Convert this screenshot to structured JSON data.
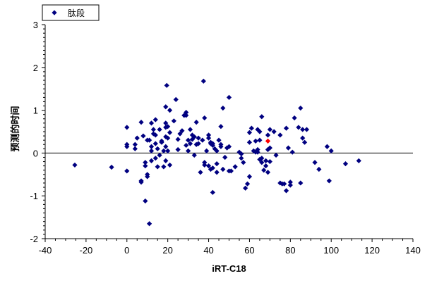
{
  "chart_data": {
    "type": "scatter",
    "xlabel": "iRT-C18",
    "ylabel": "预测的时间",
    "xlim": [
      -40,
      140
    ],
    "ylim": [
      -2,
      3
    ],
    "xticks": [
      -40,
      -20,
      0,
      20,
      40,
      60,
      80,
      100,
      120,
      140
    ],
    "yticks": [
      -2,
      -1,
      0,
      1,
      2,
      3
    ],
    "legend": {
      "position": "top-left",
      "entries": [
        "肽段"
      ]
    },
    "zero_line": true,
    "grid": false,
    "colors": {
      "series": "#000080",
      "highlight": "#ff0000"
    },
    "series": [
      {
        "name": "肽段",
        "marker": "diamond",
        "color": "#000080",
        "points": [
          [
            -25.5,
            -0.28
          ],
          [
            -7.5,
            -0.33
          ],
          [
            0,
            0.6
          ],
          [
            0,
            0.2
          ],
          [
            0,
            0.15
          ],
          [
            0,
            -0.42
          ],
          [
            4,
            0.2
          ],
          [
            4,
            0.1
          ],
          [
            5,
            0.35
          ],
          [
            7,
            0.72
          ],
          [
            7,
            -0.65
          ],
          [
            7,
            -0.68
          ],
          [
            8,
            0.4
          ],
          [
            9,
            -0.22
          ],
          [
            9,
            -0.3
          ],
          [
            9,
            -1.12
          ],
          [
            10,
            0.3
          ],
          [
            10,
            -0.5
          ],
          [
            10,
            -0.55
          ],
          [
            11,
            0.3
          ],
          [
            11,
            -1.65
          ],
          [
            12,
            0.7
          ],
          [
            12,
            0.15
          ],
          [
            12,
            0.05
          ],
          [
            12,
            -0.18
          ],
          [
            13,
            0.55
          ],
          [
            13,
            0.45
          ],
          [
            14,
            0.78
          ],
          [
            14,
            0.42
          ],
          [
            14,
            0.22
          ],
          [
            14,
            -0.12
          ],
          [
            15,
            0.1
          ],
          [
            15,
            -0.32
          ],
          [
            16,
            0.55
          ],
          [
            16,
            -0.05
          ],
          [
            17,
            0.28
          ],
          [
            17,
            0.25
          ],
          [
            18,
            0.05
          ],
          [
            18,
            -0.32
          ],
          [
            19,
            1.08
          ],
          [
            19,
            0.7
          ],
          [
            19,
            0.6
          ],
          [
            19,
            0.38
          ],
          [
            19,
            0.15
          ],
          [
            19,
            -0.18
          ],
          [
            19.5,
            1.58
          ],
          [
            20,
            0.62
          ],
          [
            20,
            0.35
          ],
          [
            20,
            0.05
          ],
          [
            21,
            1.0
          ],
          [
            21,
            0.48
          ],
          [
            21,
            -0.28
          ],
          [
            23,
            0.75
          ],
          [
            24,
            1.25
          ],
          [
            25,
            0.08
          ],
          [
            25,
            0.32
          ],
          [
            26,
            0.45
          ],
          [
            27,
            0.52
          ],
          [
            28,
            0.88
          ],
          [
            29,
            0.95
          ],
          [
            29,
            0.88
          ],
          [
            29,
            0.18
          ],
          [
            30,
            0.3
          ],
          [
            30,
            0.05
          ],
          [
            31,
            0.55
          ],
          [
            31,
            0.22
          ],
          [
            32,
            0.42
          ],
          [
            32,
            0.32
          ],
          [
            33,
            0.38
          ],
          [
            33,
            -0.05
          ],
          [
            34,
            0.72
          ],
          [
            34,
            0.2
          ],
          [
            35,
            0.35
          ],
          [
            35,
            0.22
          ],
          [
            36,
            -0.45
          ],
          [
            37,
            0.3
          ],
          [
            37.5,
            1.68
          ],
          [
            38,
            0.82
          ],
          [
            38,
            -0.22
          ],
          [
            38,
            -0.28
          ],
          [
            39,
            0.05
          ],
          [
            40,
            0.42
          ],
          [
            40,
            0.35
          ],
          [
            40,
            -0.3
          ],
          [
            41,
            0.25
          ],
          [
            41,
            0.22
          ],
          [
            41,
            -0.38
          ],
          [
            42,
            0.22
          ],
          [
            42,
            0.18
          ],
          [
            42,
            -0.35
          ],
          [
            42,
            -0.92
          ],
          [
            43,
            0.1
          ],
          [
            44,
            0.05
          ],
          [
            44,
            -0.25
          ],
          [
            44,
            -0.45
          ],
          [
            45,
            0.3
          ],
          [
            46,
            0.2
          ],
          [
            46,
            0.15
          ],
          [
            46,
            0.62
          ],
          [
            47,
            1.05
          ],
          [
            47,
            -0.38
          ],
          [
            48,
            -0.1
          ],
          [
            49,
            0.12
          ],
          [
            50,
            1.3
          ],
          [
            50,
            0.15
          ],
          [
            50,
            -0.42
          ],
          [
            51,
            -0.42
          ],
          [
            53,
            -0.32
          ],
          [
            55,
            0.02
          ],
          [
            56,
            -0.02
          ],
          [
            56,
            -0.12
          ],
          [
            57,
            -0.22
          ],
          [
            58,
            -0.82
          ],
          [
            59,
            -0.72
          ],
          [
            60,
            0.25
          ],
          [
            60,
            -0.55
          ],
          [
            60,
            0.48
          ],
          [
            61,
            0.58
          ],
          [
            62,
            0.05
          ],
          [
            63,
            0.02
          ],
          [
            63,
            0.28
          ],
          [
            64,
            0.55
          ],
          [
            64,
            0.08
          ],
          [
            64,
            0.02
          ],
          [
            65,
            0.5
          ],
          [
            65,
            0.3
          ],
          [
            65,
            -0.15
          ],
          [
            66,
            0.85
          ],
          [
            66,
            -0.12
          ],
          [
            66,
            -0.22
          ],
          [
            67,
            -0.4
          ],
          [
            68,
            -0.18
          ],
          [
            68,
            -0.3
          ],
          [
            69,
            0.42
          ],
          [
            69,
            0.08
          ],
          [
            69,
            -0.45
          ],
          [
            70,
            0.55
          ],
          [
            70,
            0.12
          ],
          [
            70,
            -0.2
          ],
          [
            72,
            0.5
          ],
          [
            73,
            -0.05
          ],
          [
            75,
            -0.7
          ],
          [
            75,
            0.42
          ],
          [
            76,
            -0.72
          ],
          [
            77,
            -0.72
          ],
          [
            78,
            0.58
          ],
          [
            78,
            -0.88
          ],
          [
            79,
            0.12
          ],
          [
            80,
            -0.75
          ],
          [
            80,
            -0.68
          ],
          [
            81,
            0.02
          ],
          [
            82,
            0.82
          ],
          [
            84,
            0.6
          ],
          [
            85,
            1.05
          ],
          [
            85,
            -0.7
          ],
          [
            86,
            0.55
          ],
          [
            86,
            0.35
          ],
          [
            87,
            0.25
          ],
          [
            88,
            0.55
          ],
          [
            92,
            -0.22
          ],
          [
            94,
            -0.38
          ],
          [
            98,
            0.15
          ],
          [
            99,
            -0.65
          ],
          [
            100,
            0.05
          ],
          [
            107,
            -0.25
          ],
          [
            113.5,
            -0.18
          ]
        ]
      },
      {
        "marker": "diamond",
        "color": "#ff0000",
        "points": [
          [
            69,
            0.28
          ]
        ]
      }
    ]
  }
}
